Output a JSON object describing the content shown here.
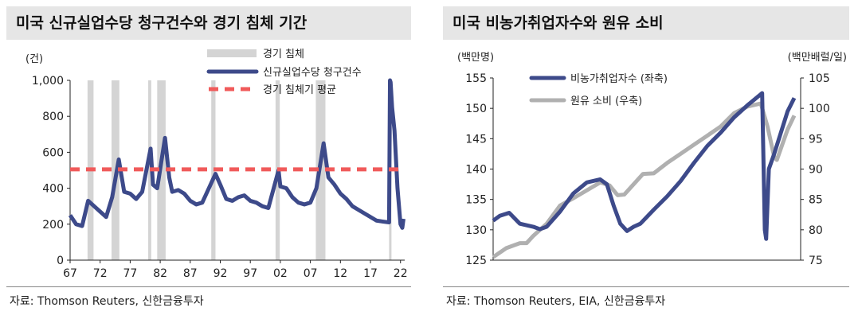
{
  "chart_data": [
    {
      "type": "line",
      "title": "미국 신규실업수당 청구건수와 경기 침체 기간",
      "ylabel": "(건)",
      "ylim": [
        0,
        1000
      ],
      "yticks": [
        "0",
        "200",
        "400",
        "600",
        "800",
        "1,000"
      ],
      "xlim": [
        1967,
        2022.7
      ],
      "xticks": [
        "67",
        "72",
        "77",
        "82",
        "87",
        "92",
        "97",
        "02",
        "07",
        "12",
        "17",
        "22"
      ],
      "legend_placement": "top-right",
      "recessions": {
        "name": "경기 침체",
        "color": "#d4d4d4",
        "periods": [
          [
            1969.9,
            1970.9
          ],
          [
            1973.9,
            1975.2
          ],
          [
            1980.0,
            1980.5
          ],
          [
            1981.5,
            1982.9
          ],
          [
            1990.5,
            1991.2
          ],
          [
            2001.2,
            2001.9
          ],
          [
            2007.9,
            2009.5
          ],
          [
            2020.1,
            2020.3
          ]
        ]
      },
      "series": [
        {
          "name": "신규실업수당 청구건수",
          "color": "#3d4a8a",
          "x": [
            1967,
            1968,
            1969,
            1970,
            1971,
            1972,
            1973,
            1974,
            1975.1,
            1975.5,
            1976,
            1977,
            1978,
            1979,
            1980.4,
            1980.8,
            1981.5,
            1982.8,
            1983.5,
            1984,
            1985,
            1986,
            1987,
            1988,
            1989,
            1991.2,
            1992,
            1993,
            1994,
            1995,
            1996,
            1997,
            1998,
            1999,
            2000,
            2001.7,
            2002,
            2003,
            2004,
            2005,
            2006,
            2007,
            2008,
            2009.2,
            2010,
            2011,
            2012,
            2013,
            2014,
            2015,
            2016,
            2017,
            2018,
            2019,
            2020.1,
            2020.25,
            2020.35,
            2020.6,
            2021,
            2021.5,
            2022,
            2022.3,
            2022.5
          ],
          "y": [
            250,
            200,
            190,
            330,
            300,
            270,
            240,
            350,
            560,
            480,
            380,
            370,
            340,
            380,
            620,
            420,
            400,
            680,
            460,
            380,
            390,
            370,
            330,
            310,
            320,
            480,
            420,
            340,
            330,
            350,
            360,
            330,
            320,
            300,
            290,
            500,
            410,
            400,
            350,
            320,
            310,
            320,
            400,
            650,
            460,
            420,
            370,
            340,
            300,
            280,
            260,
            240,
            220,
            215,
            210,
            1000,
            990,
            850,
            720,
            400,
            200,
            180,
            230
          ]
        },
        {
          "name": "경기 침체기 평균",
          "color": "#f05a5a",
          "constant": 505
        }
      ]
    },
    {
      "type": "line",
      "title": "미국 비농가취업자수와 원유 소비",
      "ylabel": "(백만명)",
      "y2label": "(백만배럴/일)",
      "ylim": [
        125,
        155
      ],
      "y2lim": [
        75,
        105
      ],
      "yticks": [
        "125",
        "130",
        "135",
        "140",
        "145",
        "150",
        "155"
      ],
      "y2ticks": [
        "75",
        "80",
        "85",
        "90",
        "95",
        "100",
        "105"
      ],
      "xlim": [
        2000,
        2023
      ],
      "xticks": [
        "00",
        "05",
        "10",
        "15",
        "20"
      ],
      "legend_placement": "top-left",
      "series": [
        {
          "name": "비농가취업자수 (좌축)",
          "axis": "left",
          "color": "#3d4a8a",
          "x": [
            2000,
            2000.5,
            2001.2,
            2002,
            2003,
            2003.5,
            2004,
            2005,
            2006,
            2007,
            2008,
            2008.5,
            2009,
            2009.5,
            2010,
            2010.5,
            2011,
            2012,
            2013,
            2014,
            2015,
            2016,
            2017,
            2018,
            2019,
            2020.1,
            2020.3,
            2020.4,
            2020.6,
            2021,
            2021.5,
            2022,
            2022.5
          ],
          "y": [
            131.5,
            132.3,
            132.8,
            131,
            130.5,
            130.1,
            130.5,
            133,
            136,
            137.8,
            138.3,
            137.5,
            134,
            131,
            129.8,
            130.5,
            131,
            133.3,
            135.5,
            138,
            141,
            143.8,
            146,
            148.5,
            150.5,
            152.5,
            130,
            128.5,
            140,
            142.5,
            146,
            149.5,
            151.7
          ]
        },
        {
          "name": "원유 소비 (우축)",
          "axis": "right",
          "color": "#b0b0b0",
          "x": [
            2000,
            2001,
            2002,
            2002.5,
            2003,
            2004,
            2005,
            2006,
            2007,
            2008,
            2008.7,
            2009.3,
            2009.8,
            2010.5,
            2011.2,
            2012,
            2013,
            2014,
            2015,
            2016,
            2017,
            2018,
            2019,
            2020,
            2020.5,
            2021,
            2021.2,
            2021.6,
            2022,
            2022.5
          ],
          "y": [
            75.5,
            77,
            77.8,
            77.8,
            79,
            81,
            84,
            85.2,
            86.5,
            87.8,
            87.3,
            85.7,
            85.8,
            87.5,
            89.2,
            89.3,
            91,
            92.5,
            94,
            95.5,
            97,
            99.2,
            100.3,
            100.8,
            97,
            92,
            91.5,
            94,
            96.5,
            98.8
          ]
        }
      ]
    }
  ],
  "sources": [
    "자료: Thomson Reuters, 신한금융투자",
    "자료: Thomson Reuters, EIA, 신한금융투자"
  ]
}
